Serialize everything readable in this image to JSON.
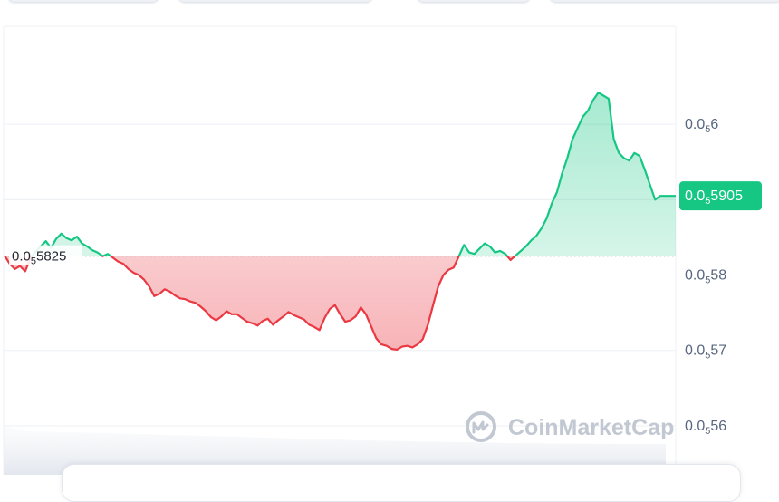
{
  "watermark": {
    "text": "CoinMarketCap",
    "icon": "coinmarketcap-logo-icon"
  },
  "colors": {
    "up": "#16c784",
    "down": "#ea3943",
    "grid": "#eff2f5",
    "axis_text": "#58667e"
  },
  "chart_data": {
    "type": "area",
    "title": "",
    "xlabel": "",
    "ylabel": "",
    "price_notation": "0.0₅ = 0.00000",
    "ylim": [
      5.535e-06,
      6.13e-06
    ],
    "y_ticks": [
      {
        "value": 5.6e-06,
        "prefix": "0.0",
        "sub": "5",
        "digits": "56"
      },
      {
        "value": 5.7e-06,
        "prefix": "0.0",
        "sub": "5",
        "digits": "57"
      },
      {
        "value": 5.8e-06,
        "prefix": "0.0",
        "sub": "5",
        "digits": "58"
      },
      {
        "value": 5.9e-06,
        "prefix": "",
        "sub": "",
        "digits": ""
      },
      {
        "value": 6e-06,
        "prefix": "0.0",
        "sub": "5",
        "digits": "6"
      }
    ],
    "reference": {
      "value": 5.825e-06,
      "prefix": "0.0",
      "sub": "5",
      "digits": "5825"
    },
    "current": {
      "value": 5.905e-06,
      "prefix": "0.0",
      "sub": "5",
      "digits": "5905"
    },
    "grid": true,
    "series": [
      {
        "values": [
          5.826,
          5.815,
          5.808,
          5.812,
          5.805,
          5.822,
          5.831,
          5.838,
          5.845,
          5.836,
          5.848,
          5.855,
          5.849,
          5.846,
          5.851,
          5.842,
          5.838,
          5.833,
          5.83,
          5.825,
          5.828,
          5.823,
          5.818,
          5.815,
          5.808,
          5.803,
          5.8,
          5.794,
          5.785,
          5.772,
          5.775,
          5.781,
          5.778,
          5.773,
          5.769,
          5.768,
          5.765,
          5.763,
          5.758,
          5.752,
          5.744,
          5.74,
          5.745,
          5.752,
          5.748,
          5.748,
          5.743,
          5.738,
          5.736,
          5.733,
          5.739,
          5.742,
          5.734,
          5.74,
          5.745,
          5.751,
          5.747,
          5.744,
          5.741,
          5.734,
          5.731,
          5.727,
          5.743,
          5.755,
          5.76,
          5.748,
          5.738,
          5.74,
          5.745,
          5.757,
          5.748,
          5.732,
          5.716,
          5.708,
          5.706,
          5.702,
          5.701,
          5.705,
          5.706,
          5.704,
          5.708,
          5.715,
          5.734,
          5.76,
          5.785,
          5.8,
          5.807,
          5.81,
          5.825,
          5.84,
          5.83,
          5.828,
          5.835,
          5.842,
          5.838,
          5.83,
          5.832,
          5.828,
          5.82,
          5.826,
          5.832,
          5.838,
          5.846,
          5.852,
          5.862,
          5.875,
          5.895,
          5.91,
          5.935,
          5.955,
          5.98,
          5.995,
          6.01,
          6.018,
          6.032,
          6.042,
          6.038,
          6.034,
          5.98,
          5.962,
          5.955,
          5.952,
          5.962,
          5.958,
          5.94,
          5.92,
          5.9,
          5.905,
          5.905,
          5.905,
          5.905
        ],
        "scale": 1e-06
      }
    ]
  }
}
